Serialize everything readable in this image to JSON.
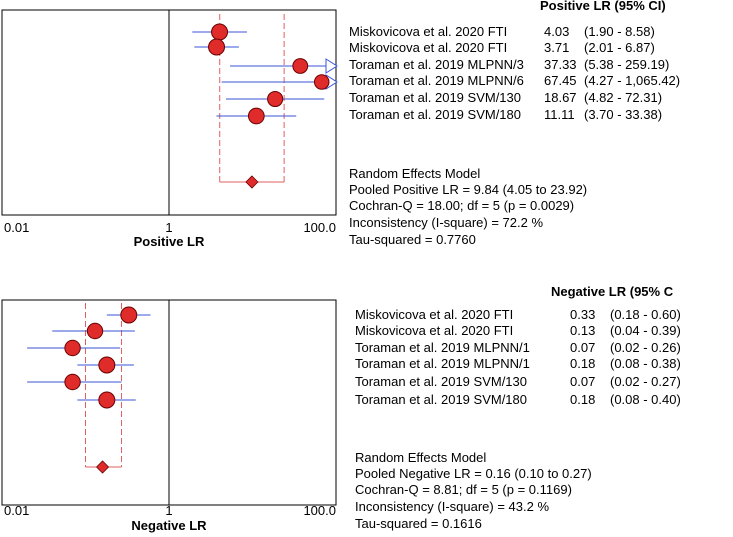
{
  "chart_data": [
    {
      "type": "forest",
      "title": "Positive LR (95% CI)",
      "xlabel": "Positive LR",
      "xscale": "log",
      "xlim": [
        0.01,
        100.0
      ],
      "tick_labels": [
        "0.01",
        "1",
        "100.0"
      ],
      "reference_line": 1,
      "studies": [
        {
          "name": "Miskovicova et al. 2020 FTI",
          "est": 4.03,
          "lo": 1.9,
          "hi": 8.58,
          "est_label": "4.03",
          "ci_label": "(1.90 - 8.58)",
          "size": 1.0,
          "arrow": false
        },
        {
          "name": "Miskovicova et al. 2020 FTI",
          "est": 3.71,
          "lo": 2.01,
          "hi": 6.87,
          "est_label": "3.71",
          "ci_label": "(2.01 - 6.87)",
          "size": 1.0,
          "arrow": false
        },
        {
          "name": "Toraman et al. 2019 MLPNN/3",
          "est": 37.33,
          "lo": 5.38,
          "hi": 259.19,
          "est_label": "37.33",
          "ci_label": "(5.38 - 259.19)",
          "size": 0.8,
          "arrow": true
        },
        {
          "name": "Toraman et al. 2019 MLPNN/6",
          "est": 67.45,
          "lo": 4.27,
          "hi": 1065.42,
          "est_label": "67.45",
          "ci_label": "(4.27 - 1,065.42)",
          "size": 0.75,
          "arrow": true
        },
        {
          "name": "Toraman et al. 2019 SVM/130",
          "est": 18.67,
          "lo": 4.82,
          "hi": 72.31,
          "est_label": "18.67",
          "ci_label": "(4.82 - 72.31)",
          "size": 0.85,
          "arrow": false
        },
        {
          "name": "Toraman et al. 2019 SVM/180",
          "est": 11.11,
          "lo": 3.7,
          "hi": 33.38,
          "est_label": "11.11",
          "ci_label": "(3.70 - 33.38)",
          "size": 0.95,
          "arrow": false
        }
      ],
      "pooled": {
        "est": 9.84,
        "lo": 4.05,
        "hi": 23.92
      },
      "summary_lines": [
        "Random Effects Model",
        "Pooled Positive LR = 9.84 (4.05 to 23.92)",
        "Cochran-Q = 18.00; df =  5 (p = 0.0029)",
        "Inconsistency (I-square) = 72.2 %",
        "Tau-squared = 0.7760"
      ]
    },
    {
      "type": "forest",
      "title": "Negative LR (95% C",
      "xlabel": "Negative LR",
      "xscale": "log",
      "xlim": [
        0.01,
        100.0
      ],
      "tick_labels": [
        "0.01",
        "1",
        "100.0"
      ],
      "reference_line": 1,
      "studies": [
        {
          "name": "Miskovicova et al. 2020 FTI",
          "est": 0.33,
          "lo": 0.18,
          "hi": 0.6,
          "est_label": "0.33",
          "ci_label": "(0.18 - 0.60)",
          "size": 1.0,
          "arrow": false
        },
        {
          "name": "Miskovicova et al. 2020 FTI",
          "est": 0.13,
          "lo": 0.04,
          "hi": 0.39,
          "est_label": "0.13",
          "ci_label": "(0.04 - 0.39)",
          "size": 0.9,
          "arrow": false
        },
        {
          "name": "Toraman et al. 2019 MLPNN/1",
          "est": 0.07,
          "lo": 0.02,
          "hi": 0.26,
          "est_label": "0.07",
          "ci_label": "(0.02 - 0.26)",
          "size": 0.9,
          "arrow": false
        },
        {
          "name": "Toraman et al. 2019 MLPNN/1",
          "est": 0.18,
          "lo": 0.08,
          "hi": 0.38,
          "est_label": "0.18",
          "ci_label": "(0.08 - 0.38)",
          "size": 1.0,
          "arrow": false
        },
        {
          "name": "Toraman et al. 2019 SVM/130",
          "est": 0.07,
          "lo": 0.02,
          "hi": 0.27,
          "est_label": "0.07",
          "ci_label": "(0.02 - 0.27)",
          "size": 0.9,
          "arrow": false
        },
        {
          "name": "Toraman et al. 2019 SVM/180",
          "est": 0.18,
          "lo": 0.08,
          "hi": 0.4,
          "est_label": "0.18",
          "ci_label": "(0.08 - 0.40)",
          "size": 1.0,
          "arrow": false
        }
      ],
      "pooled": {
        "est": 0.16,
        "lo": 0.1,
        "hi": 0.27
      },
      "summary_lines": [
        "Random Effects Model",
        "Pooled Negative LR = 0.16 (0.10 to 0.27)",
        "Cochran-Q = 8.81; df =  5 (p = 0.1169)",
        "Inconsistency (I-square) = 43.2 %",
        "Tau-squared = 0.1616"
      ]
    }
  ],
  "colors": {
    "marker_fill": "#e02b2b",
    "marker_stroke": "#6a0000",
    "ci_line": "#3a55d8",
    "pooled_line": "#e06060",
    "axis": "#000000"
  }
}
